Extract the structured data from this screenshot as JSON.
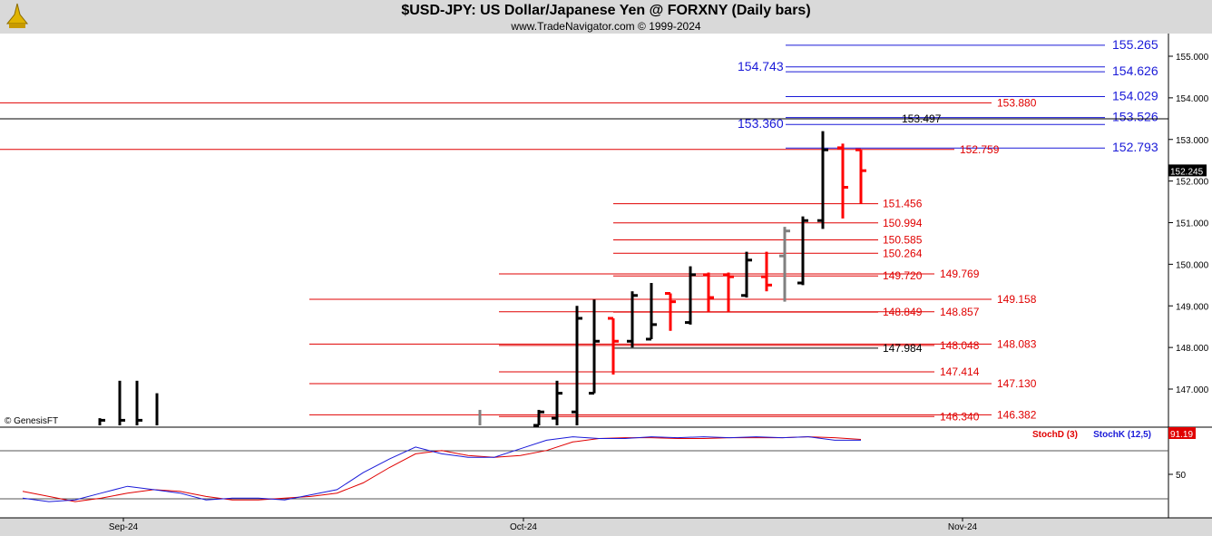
{
  "header": {
    "title": "$USD-JPY:  US Dollar/Japanese Yen @ FORXNY  (Daily bars)",
    "subtitle": "www.TradeNavigator.com © 1999-2024"
  },
  "watermark": "© GenesisFT",
  "colors": {
    "up": "#000000",
    "down": "#ff0000",
    "neutral": "#808080",
    "level_red": "#e00000",
    "level_blue": "#1a1ad8",
    "stoch_d": "#e00000",
    "stoch_k": "#1a1ad8"
  },
  "chart_data": [
    {
      "type": "bar",
      "subtype": "ohlc",
      "ylim": [
        146.3,
        155.8
      ],
      "y_ticks": [
        "155.000",
        "154.000",
        "153.000",
        "152.000",
        "151.000",
        "150.000",
        "149.000",
        "148.000",
        "147.000"
      ],
      "x_labels": [
        "Sep-24",
        "Oct-24",
        "Nov-24"
      ],
      "last_price": "152.245",
      "bars": [
        {
          "o": null,
          "h": 146.3,
          "l": 146.1,
          "c": 146.25,
          "dir": "up"
        },
        {
          "o": null,
          "h": 147.2,
          "l": 146.0,
          "c": 146.25,
          "dir": "up"
        },
        {
          "o": null,
          "h": 147.2,
          "l": 146.0,
          "c": 146.25,
          "dir": "up"
        },
        {
          "o": null,
          "h": 146.9,
          "l": 146.0,
          "c": null,
          "dir": "up"
        },
        {
          "o": null,
          "h": 146.5,
          "l": 146.0,
          "c": null,
          "dir": "neutral"
        },
        {
          "o": 146.1,
          "h": 146.5,
          "l": 146.0,
          "c": 146.45,
          "dir": "up"
        },
        {
          "o": 146.3,
          "h": 147.2,
          "l": 146.1,
          "c": 146.9,
          "dir": "up"
        },
        {
          "o": 146.45,
          "h": 149.0,
          "l": 146.1,
          "c": 148.7,
          "dir": "up"
        },
        {
          "o": 146.9,
          "h": 149.15,
          "l": 146.9,
          "c": 148.15,
          "dir": "up"
        },
        {
          "o": 148.7,
          "h": 148.7,
          "l": 147.35,
          "c": 148.15,
          "dir": "down"
        },
        {
          "o": 148.15,
          "h": 149.35,
          "l": 148.0,
          "c": 149.25,
          "dir": "up"
        },
        {
          "o": 148.2,
          "h": 149.55,
          "l": 148.2,
          "c": 148.55,
          "dir": "up"
        },
        {
          "o": 149.3,
          "h": 149.3,
          "l": 148.4,
          "c": 149.1,
          "dir": "down"
        },
        {
          "o": 148.6,
          "h": 149.95,
          "l": 148.55,
          "c": 149.75,
          "dir": "up"
        },
        {
          "o": 149.75,
          "h": 149.8,
          "l": 148.85,
          "c": 149.2,
          "dir": "down"
        },
        {
          "o": 149.75,
          "h": 149.8,
          "l": 148.85,
          "c": 149.7,
          "dir": "down"
        },
        {
          "o": 149.25,
          "h": 150.3,
          "l": 149.2,
          "c": 150.1,
          "dir": "up"
        },
        {
          "o": 149.7,
          "h": 150.3,
          "l": 149.35,
          "c": 149.5,
          "dir": "down"
        },
        {
          "o": 150.2,
          "h": 150.9,
          "l": 149.1,
          "c": 150.8,
          "dir": "neutral"
        },
        {
          "o": 149.55,
          "h": 151.15,
          "l": 149.5,
          "c": 151.05,
          "dir": "up"
        },
        {
          "o": 151.05,
          "h": 153.2,
          "l": 150.85,
          "c": 152.75,
          "dir": "up"
        },
        {
          "o": 152.8,
          "h": 152.9,
          "l": 151.1,
          "c": 151.85,
          "dir": "down"
        },
        {
          "o": 152.75,
          "h": 152.75,
          "l": 151.45,
          "c": 152.25,
          "dir": "down"
        }
      ],
      "levels": [
        {
          "value": 155.265,
          "label": "155.265",
          "color": "blue"
        },
        {
          "value": 154.743,
          "label": "154.743",
          "color": "blue"
        },
        {
          "value": 154.626,
          "label": "154.626",
          "color": "blue"
        },
        {
          "value": 154.029,
          "label": "154.029",
          "color": "blue"
        },
        {
          "value": 153.88,
          "label": "153.880",
          "color": "red"
        },
        {
          "value": 153.526,
          "label": "153.526",
          "color": "blue"
        },
        {
          "value": 153.497,
          "label": "153.497",
          "color": "black"
        },
        {
          "value": 153.36,
          "label": "153.360",
          "color": "blue"
        },
        {
          "value": 152.793,
          "label": "152.793",
          "color": "blue"
        },
        {
          "value": 152.759,
          "label": "152.759",
          "color": "red"
        },
        {
          "value": 151.456,
          "label": "151.456",
          "color": "red"
        },
        {
          "value": 150.994,
          "label": "150.994",
          "color": "red"
        },
        {
          "value": 150.585,
          "label": "150.585",
          "color": "red"
        },
        {
          "value": 150.264,
          "label": "150.264",
          "color": "red"
        },
        {
          "value": 149.769,
          "label": "149.769",
          "color": "red"
        },
        {
          "value": 149.72,
          "label": "149.720",
          "color": "red"
        },
        {
          "value": 149.158,
          "label": "149.158",
          "color": "red"
        },
        {
          "value": 148.857,
          "label": "148.857",
          "color": "red"
        },
        {
          "value": 148.849,
          "label": "148.849",
          "color": "red"
        },
        {
          "value": 148.083,
          "label": "148.083",
          "color": "red"
        },
        {
          "value": 148.048,
          "label": "148.048",
          "color": "red"
        },
        {
          "value": 147.984,
          "label": "147.984",
          "color": "black"
        },
        {
          "value": 147.414,
          "label": "147.414",
          "color": "red"
        },
        {
          "value": 147.13,
          "label": "147.130",
          "color": "red"
        },
        {
          "value": 146.382,
          "label": "146.382",
          "color": "red"
        },
        {
          "value": 146.34,
          "label": "146.340",
          "color": "red"
        }
      ]
    },
    {
      "type": "line",
      "title": "",
      "ylim": [
        0,
        100
      ],
      "y_ticks": [
        "50"
      ],
      "last_value": "91.19",
      "series": [
        {
          "name": "StochD (3)",
          "values": [
            30,
            24,
            18,
            22,
            28,
            32,
            30,
            24,
            20,
            20,
            22,
            24,
            28,
            40,
            58,
            74,
            78,
            72,
            70,
            72,
            78,
            88,
            92,
            93,
            93,
            92,
            92,
            93,
            93,
            93,
            94,
            93,
            91
          ]
        },
        {
          "name": "StochK (12,5)",
          "values": [
            22,
            18,
            20,
            28,
            36,
            32,
            28,
            20,
            22,
            22,
            20,
            26,
            32,
            52,
            68,
            82,
            74,
            70,
            70,
            80,
            90,
            94,
            92,
            92,
            94,
            93,
            94,
            93,
            94,
            93,
            94,
            90,
            90
          ]
        }
      ]
    }
  ]
}
